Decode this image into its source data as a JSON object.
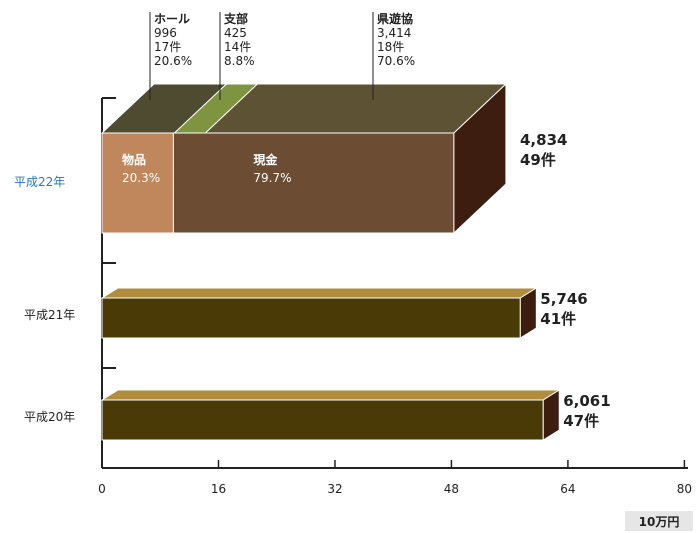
{
  "chart_data": {
    "type": "bar",
    "orientation": "horizontal",
    "stacked": true,
    "style": "3d",
    "xlim": [
      0,
      80
    ],
    "x_ticks": [
      "0",
      "16",
      "32",
      "48",
      "64",
      "80"
    ],
    "unit": "10万円",
    "grid": false,
    "categories": [
      "平成22年",
      "平成21年",
      "平成20年"
    ],
    "bars": [
      {
        "category": "平成22年",
        "total": 48.34,
        "label_lines": [
          "4,834",
          "49件"
        ],
        "segments": [
          {
            "name": "物品",
            "value": 9.81,
            "percent": "20.3%",
            "color": "#c0865c"
          },
          {
            "name": "現金",
            "value": 38.53,
            "percent": "79.7%",
            "color": "#6c4d33"
          }
        ],
        "top_segments": [
          {
            "name": "ホール",
            "lines": [
              "ホール",
              "996",
              "17件",
              "20.6%"
            ],
            "value": 9.96,
            "color": "#4e4b31"
          },
          {
            "name": "支部",
            "lines": [
              "支部",
              "425",
              "14件",
              "8.8%"
            ],
            "value": 4.25,
            "color": "#7e9440"
          },
          {
            "name": "県遊協",
            "lines": [
              "県遊協",
              "3,414",
              "18件",
              "70.6%"
            ],
            "value": 34.14,
            "color": "#5e5235"
          }
        ]
      },
      {
        "category": "平成21年",
        "total": 57.46,
        "label_lines": [
          "5,746",
          "41件"
        ],
        "color": "#4a3a05",
        "top_color": "#b08d3c"
      },
      {
        "category": "平成20年",
        "total": 60.61,
        "label_lines": [
          "6,061",
          "47件"
        ],
        "color": "#4a3a05",
        "top_color": "#b08d3c"
      }
    ],
    "highlight_color": "#2a76b8",
    "side_color": "#3d1d0f"
  }
}
